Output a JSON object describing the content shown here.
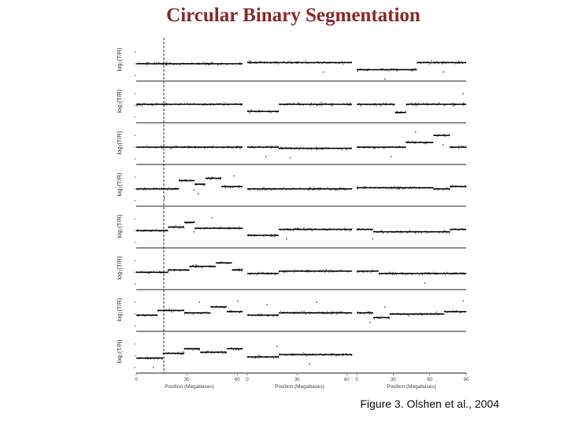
{
  "slide": {
    "title": "Circular Binary Segmentation",
    "caption": "Figure 3. Olshen et al., 2004"
  },
  "figure": {
    "ylabel": "log₂(T/R)",
    "xlabel": "Position (Megabases)",
    "columns": [
      {
        "xticks": [
          "0",
          "30",
          "60"
        ]
      },
      {
        "xticks": [
          "0",
          "30",
          "60"
        ]
      },
      {
        "xticks": [
          "0",
          "30",
          "60",
          "90"
        ]
      }
    ],
    "colors": {
      "points": "#7a7a7a",
      "segments": "#000000",
      "axes": "#222222"
    }
  },
  "chart_data": {
    "type": "scatter",
    "panel_rows": 8,
    "panel_columns": 3,
    "segments": [
      [
        [
          [
            0,
            1,
            0.0
          ]
        ],
        [
          [
            0,
            1,
            0.05
          ]
        ],
        [
          [
            0,
            0.55,
            -0.25
          ],
          [
            0.55,
            1,
            0.05
          ]
        ]
      ],
      [
        [
          [
            0,
            1,
            0.05
          ]
        ],
        [
          [
            0,
            0.3,
            -0.25
          ],
          [
            0.3,
            1,
            0.05
          ]
        ],
        [
          [
            0,
            0.35,
            0.05
          ],
          [
            0.35,
            0.45,
            -0.3
          ],
          [
            0.45,
            1,
            0.05
          ]
        ]
      ],
      [
        [
          [
            0,
            1,
            0.0
          ]
        ],
        [
          [
            0,
            0.3,
            0.0
          ],
          [
            0.3,
            1,
            -0.05
          ]
        ],
        [
          [
            0,
            0.45,
            0.0
          ],
          [
            0.45,
            0.7,
            0.2
          ],
          [
            0.7,
            0.85,
            0.5
          ],
          [
            0.85,
            1,
            0.0
          ]
        ]
      ],
      [
        [
          [
            0,
            0.4,
            0.0
          ],
          [
            0.4,
            0.55,
            0.35
          ],
          [
            0.55,
            0.65,
            0.2
          ],
          [
            0.65,
            0.8,
            0.45
          ],
          [
            0.8,
            1,
            0.1
          ]
        ],
        [
          [
            0,
            1,
            0.0
          ]
        ],
        [
          [
            0,
            0.7,
            0.05
          ],
          [
            0.7,
            0.85,
            0.0
          ],
          [
            0.85,
            1,
            0.1
          ]
        ]
      ],
      [
        [
          [
            0,
            0.3,
            0.0
          ],
          [
            0.3,
            0.45,
            0.15
          ],
          [
            0.45,
            0.55,
            0.35
          ],
          [
            0.55,
            1,
            0.1
          ]
        ],
        [
          [
            0,
            0.3,
            -0.2
          ],
          [
            0.3,
            1,
            0.05
          ]
        ],
        [
          [
            0,
            0.15,
            0.05
          ],
          [
            0.15,
            0.85,
            -0.05
          ],
          [
            0.85,
            1,
            0.05
          ]
        ]
      ],
      [
        [
          [
            0,
            0.3,
            0.0
          ],
          [
            0.3,
            0.5,
            0.1
          ],
          [
            0.5,
            0.75,
            0.25
          ],
          [
            0.75,
            0.9,
            0.4
          ],
          [
            0.9,
            1,
            0.1
          ]
        ],
        [
          [
            0,
            0.3,
            -0.05
          ],
          [
            0.3,
            1,
            0.05
          ]
        ],
        [
          [
            0,
            0.2,
            0.05
          ],
          [
            0.2,
            1,
            -0.05
          ]
        ]
      ],
      [
        [
          [
            0,
            0.2,
            -0.05
          ],
          [
            0.2,
            0.45,
            0.15
          ],
          [
            0.45,
            0.7,
            0.05
          ],
          [
            0.7,
            0.85,
            0.3
          ],
          [
            0.85,
            1,
            0.1
          ]
        ],
        [
          [
            0,
            0.3,
            -0.05
          ],
          [
            0.3,
            1,
            0.05
          ]
        ],
        [
          [
            0,
            0.15,
            0.05
          ],
          [
            0.15,
            0.3,
            -0.15
          ],
          [
            0.3,
            0.8,
            0.0
          ],
          [
            0.8,
            1,
            0.1
          ]
        ]
      ],
      [
        [
          [
            0,
            0.25,
            -0.1
          ],
          [
            0.25,
            0.45,
            0.1
          ],
          [
            0.45,
            0.6,
            0.3
          ],
          [
            0.6,
            0.85,
            0.15
          ],
          [
            0.85,
            1,
            0.3
          ]
        ],
        [
          [
            0,
            0.3,
            -0.05
          ],
          [
            0.3,
            1,
            0.05
          ]
        ],
        []
      ]
    ]
  }
}
